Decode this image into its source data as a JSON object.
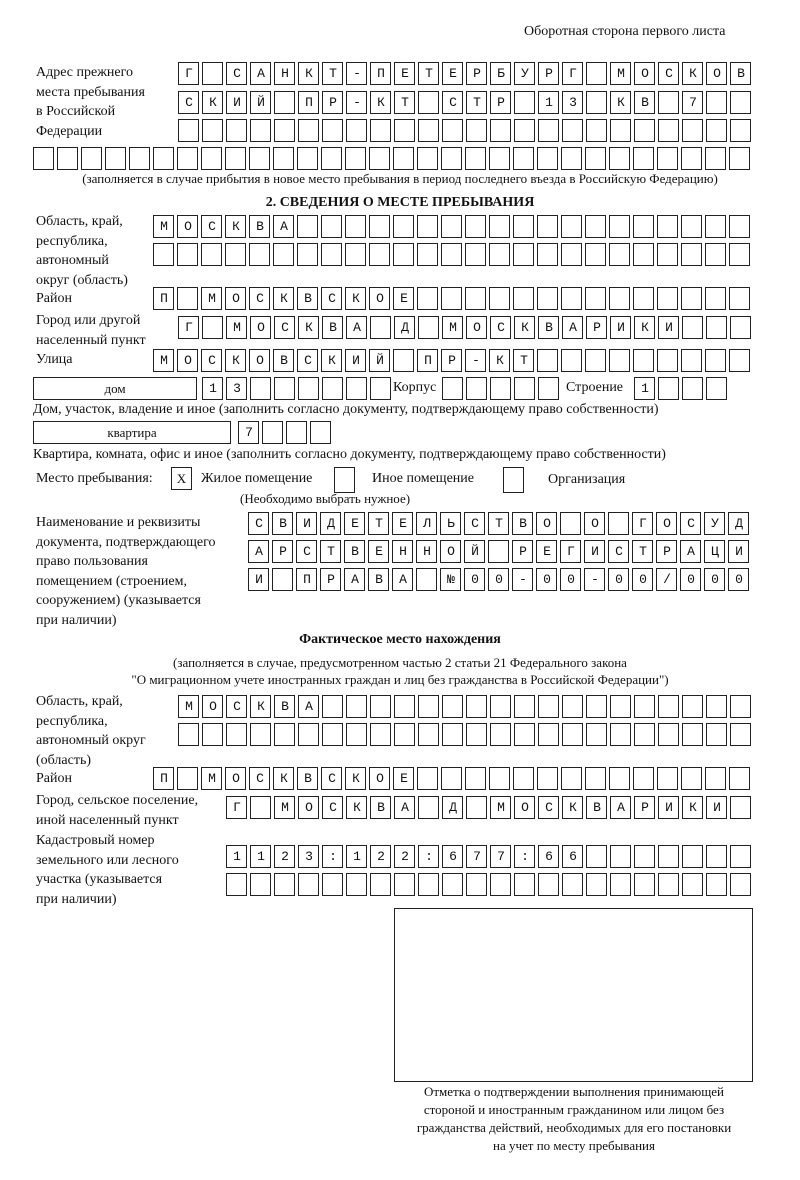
{
  "header": {
    "page_side": "Оборотная сторона первого листа"
  },
  "prev_address": {
    "label": "Адрес прежнего\nместа пребывания\nв Российской\nФедерации",
    "rows": [
      "Г САНКТ-ПЕТЕРБУРГ МОСКОВ",
      "СКИЙ ПР-КТ СТР 13 КВ 7",
      "",
      ""
    ],
    "note": "(заполняется в случае прибытия в новое место пребывания в период последнего въезда в Российскую Федерацию)"
  },
  "section2": {
    "title": "2. СВЕДЕНИЯ О МЕСТЕ ПРЕБЫВАНИЯ",
    "region_label": "Область, край,\nреспублика,\nавтономный\nокруг (область)",
    "region_rows": [
      "МОСКВА",
      ""
    ],
    "district_label": "Район",
    "district": "П МОСКВСКОЕ",
    "city_label": "Город или другой\nнаселенный пункт",
    "city": "Г МОСКВА Д МОСКВАРИКИ",
    "street_label": "Улица",
    "street": "МОСКОВСКИЙ ПР-КТ",
    "house_type": "дом",
    "house_number": "13",
    "corpus_label": "Корпус",
    "corpus": "",
    "building_label": "Строение",
    "building": "1",
    "house_note": "Дом, участок, владение и иное (заполнить согласно документу, подтверждающему право собственности)",
    "flat_type": "квартира",
    "flat_number": "7",
    "flat_note": "Квартира, комната, офис и иное (заполнить согласно документу, подтверждающему право собственности)",
    "stay_place_label": "Место пребывания:",
    "options": [
      {
        "label": "Жилое помещение",
        "mark": "X"
      },
      {
        "label": "Иное помещение",
        "mark": ""
      },
      {
        "label": "Организация",
        "mark": ""
      }
    ],
    "choose_note": "(Необходимо выбрать нужное)",
    "doc_label": "Наименование и реквизиты\nдокумента, подтверждающего\nправо пользования\nпомещением (строением,\nсооружением) (указывается\nпри наличии)",
    "doc_rows": [
      "СВИДЕТЕЛЬСТВО О ГОСУД",
      "АРСТВЕННОЙ РЕГИСТРАЦИ",
      "И ПРАВА №00-00-00/000"
    ]
  },
  "actual": {
    "title": "Фактическое место нахождения",
    "note": "(заполняется в случае, предусмотренном частью 2 статьи 21 Федерального закона\n\"О миграционном учете иностранных граждан и лиц без гражданства в Российской Федерации\")",
    "region_label": "Область, край,\nреспублика,\nавтономный округ\n(область)",
    "region_rows": [
      "МОСКВА",
      ""
    ],
    "district_label": "Район",
    "district": "П МОСКВСКОЕ",
    "city_label": "Город, сельское поселение,\nиной населенный пункт",
    "city": "Г МОСКВА Д МОСКВАРИКИ",
    "cadastral_label": "Кадастровый номер\nземельного или лесного\nучастка (указывается\nпри наличии)",
    "cadastral_rows": [
      "1123:122:677:66",
      ""
    ]
  },
  "stamp": {
    "caption": "Отметка о подтверждении выполнения принимающей\nстороной и иностранным гражданином или лицом без\nгражданства действий, необходимых для его постановки\nна учет по месту пребывания"
  }
}
